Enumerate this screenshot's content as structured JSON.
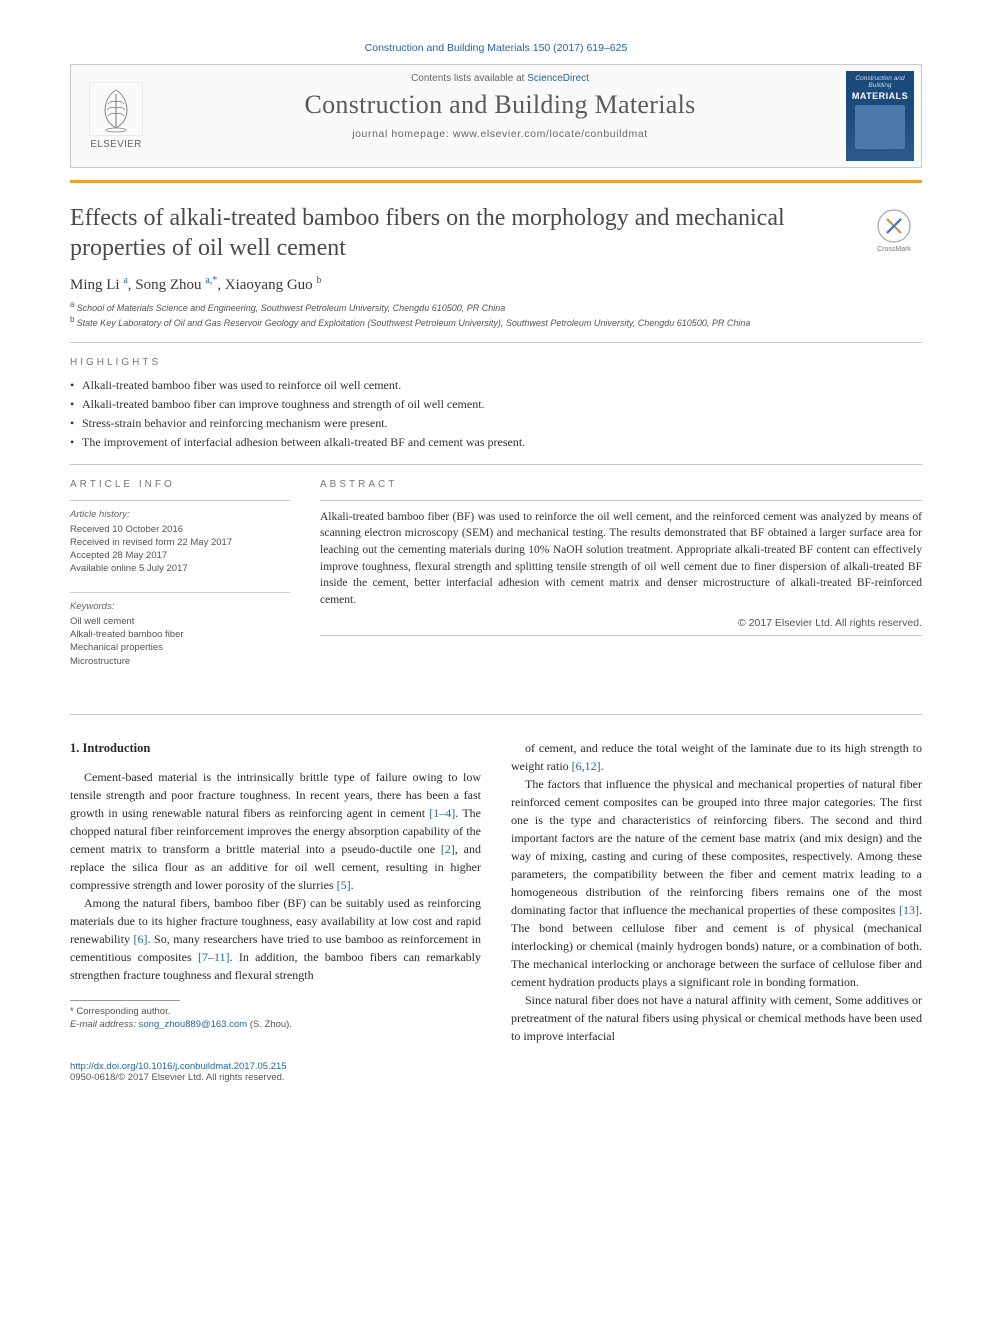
{
  "citation_header": "Construction and Building Materials 150 (2017) 619–625",
  "header": {
    "contents_prefix": "Contents lists available at ",
    "contents_link": "ScienceDirect",
    "journal": "Construction and Building Materials",
    "homepage_prefix": "journal homepage: ",
    "homepage_url": "www.elsevier.com/locate/conbuildmat",
    "publisher": "ELSEVIER",
    "cover_title": "Construction and Building",
    "cover_sub": "MATERIALS"
  },
  "article": {
    "title": "Effects of alkali-treated bamboo fibers on the morphology and mechanical properties of oil well cement",
    "crossmark": "CrossMark",
    "authors_html": "Ming Li ᵃ, Song Zhou ᵃ·*, Xiaoyang Guo ᵇ",
    "authors": [
      {
        "name": "Ming Li",
        "sup": "a"
      },
      {
        "name": "Song Zhou",
        "sup": "a,*"
      },
      {
        "name": "Xiaoyang Guo",
        "sup": "b"
      }
    ],
    "affiliations": [
      {
        "sup": "a",
        "text": "School of Materials Science and Engineering, Southwest Petroleum University, Chengdu 610500, PR China"
      },
      {
        "sup": "b",
        "text": "State Key Laboratory of Oil and Gas Reservoir Geology and Exploitation (Southwest Petroleum University), Southwest Petroleum University, Chengdu 610500, PR China"
      }
    ]
  },
  "highlights": {
    "label": "HIGHLIGHTS",
    "items": [
      "Alkali-treated bamboo fiber was used to reinforce oil well cement.",
      "Alkali-treated bamboo fiber can improve toughness and strength of oil well cement.",
      "Stress-strain behavior and reinforcing mechanism were present.",
      "The improvement of interfacial adhesion between alkali-treated BF and cement was present."
    ]
  },
  "article_info": {
    "label": "ARTICLE INFO",
    "history_label": "Article history:",
    "history": [
      "Received 10 October 2016",
      "Received in revised form 22 May 2017",
      "Accepted 28 May 2017",
      "Available online 5 July 2017"
    ],
    "keywords_label": "Keywords:",
    "keywords": [
      "Oil well cement",
      "Alkali-treated bamboo fiber",
      "Mechanical properties",
      "Microstructure"
    ]
  },
  "abstract": {
    "label": "ABSTRACT",
    "text": "Alkali-treated bamboo fiber (BF) was used to reinforce the oil well cement, and the reinforced cement was analyzed by means of scanning electron microscopy (SEM) and mechanical testing. The results demonstrated that BF obtained a larger surface area for leaching out the cementing materials during 10% NaOH solution treatment. Appropriate alkali-treated BF content can effectively improve toughness, flexural strength and splitting tensile strength of oil well cement due to finer dispersion of alkali-treated BF inside the cement, better interfacial adhesion with cement matrix and denser microstructure of alkali-treated BF-reinforced cement.",
    "copyright": "© 2017 Elsevier Ltd. All rights reserved."
  },
  "body": {
    "section_heading": "1. Introduction",
    "col1": [
      "Cement-based material is the intrinsically brittle type of failure owing to low tensile strength and poor fracture toughness. In recent years, there has been a fast growth in using renewable natural fibers as reinforcing agent in cement [1–4]. The chopped natural fiber reinforcement improves the energy absorption capability of the cement matrix to transform a brittle material into a pseudo-ductile one [2], and replace the silica flour as an additive for oil well cement, resulting in higher compressive strength and lower porosity of the slurries [5].",
      "Among the natural fibers, bamboo fiber (BF) can be suitably used as reinforcing materials due to its higher fracture toughness, easy availability at low cost and rapid renewability [6]. So, many researchers have tried to use bamboo as reinforcement in cementitious composites [7–11]. In addition, the bamboo fibers can remarkably strengthen fracture toughness and flexural strength"
    ],
    "col2": [
      "of cement, and reduce the total weight of the laminate due to its high strength to weight ratio [6,12].",
      "The factors that influence the physical and mechanical properties of natural fiber reinforced cement composites can be grouped into three major categories. The first one is the type and characteristics of reinforcing fibers. The second and third important factors are the nature of the cement base matrix (and mix design) and the way of mixing, casting and curing of these composites, respectively. Among these parameters, the compatibility between the fiber and cement matrix leading to a homogeneous distribution of the reinforcing fibers remains one of the most dominating factor that influence the mechanical properties of these composites [13]. The bond between cellulose fiber and cement is of physical (mechanical interlocking) or chemical (mainly hydrogen bonds) nature, or a combination of both. The mechanical interlocking or anchorage between the surface of cellulose fiber and cement hydration products plays a significant role in bonding formation.",
      "Since natural fiber does not have a natural affinity with cement, Some additives or pretreatment of the natural fibers using physical or chemical methods have been used to improve interfacial"
    ]
  },
  "footnote": {
    "corr_label": "* Corresponding author.",
    "email_label": "E-mail address: ",
    "email": "song_zhou889@163.com",
    "email_suffix": " (S. Zhou)."
  },
  "footer": {
    "doi": "http://dx.doi.org/10.1016/j.conbuildmat.2017.05.215",
    "issn_line": "0950-0618/© 2017 Elsevier Ltd. All rights reserved."
  },
  "colors": {
    "link": "#2a6496",
    "orange_rule": "#e8a23a",
    "text": "#2a2a2a",
    "muted": "#666666",
    "border": "#c9c9c9",
    "cover_bg": "#1a4a7a"
  },
  "typography": {
    "title_fontsize": 24,
    "journal_fontsize": 26,
    "body_fontsize": 12,
    "abstract_fontsize": 11.5,
    "info_fontsize": 9.5,
    "section_label_letterspacing": 3
  }
}
